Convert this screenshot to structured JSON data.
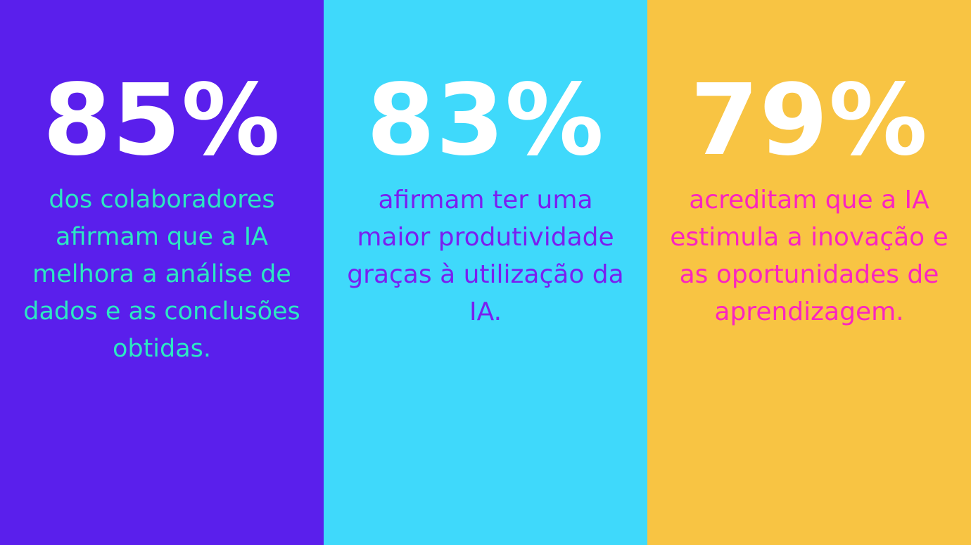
{
  "colors": {
    "panel_1_bg": "#5a1fec",
    "panel_2_bg": "#3fd9fb",
    "panel_3_bg": "#f8c443",
    "stat_value": "#ffffff",
    "panel_1_text": "#2ce8c2",
    "panel_2_text": "#7a1ff0",
    "panel_3_text": "#fb24c0"
  },
  "stats": [
    {
      "value": "85%",
      "description": "dos colaboradores afirmam que a IA melhora a análise de dados e as conclusões obtidas."
    },
    {
      "value": "83%",
      "description": "afirmam ter uma maior produtividade graças à utilização da IA."
    },
    {
      "value": "79%",
      "description": "acreditam que a IA estimula a inovação e as oportunidades de aprendizagem."
    }
  ]
}
